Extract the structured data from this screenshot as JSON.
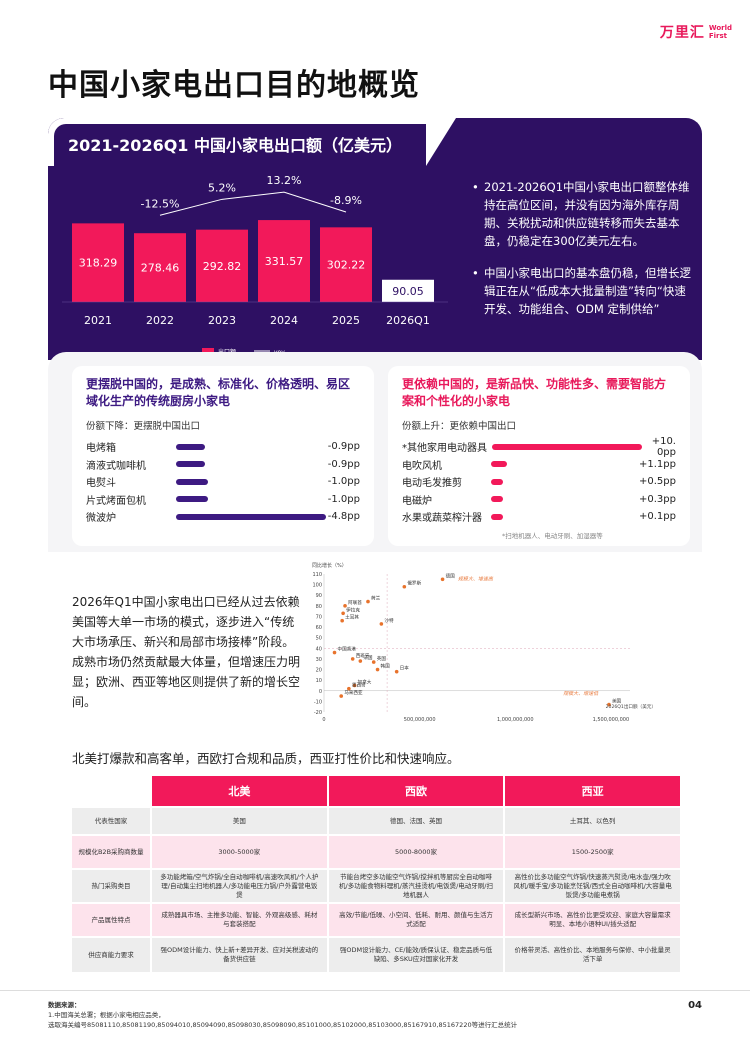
{
  "logo": {
    "cn": "万里汇",
    "en_line1": "World",
    "en_line2": "First"
  },
  "page_title": "中国小家电出口目的地概览",
  "chart_data": {
    "type": "bar",
    "title": "2021-2026Q1 中国小家电出口额（亿美元）",
    "categories": [
      "2021",
      "2022",
      "2023",
      "2024",
      "2025",
      "2026Q1"
    ],
    "series": [
      {
        "name": "出口额",
        "values": [
          318.29,
          278.46,
          292.82,
          331.57,
          302.22,
          90.05
        ]
      },
      {
        "name": "yoy",
        "values": [
          null,
          -12.5,
          5.2,
          13.2,
          -8.9,
          null
        ]
      }
    ],
    "value_labels": [
      "318.29",
      "278.46",
      "292.82",
      "331.57",
      "302.22",
      "90.05"
    ],
    "yoy_labels": [
      "",
      "-12.5%",
      "5.2%",
      "13.2%",
      "-8.9%",
      ""
    ],
    "legend": [
      "出口额",
      "yoy"
    ],
    "colors": {
      "bar": "#f2195a",
      "last_bar": "#ffffff",
      "line": "#ffffff"
    }
  },
  "bullets": [
    "2021-2026Q1中国小家电出口额整体维持在高位区间，并没有因为海外库存周期、关税扰动和供应链转移而失去基本盘，仍稳定在300亿美元左右。",
    "中国小家电出口的基本盘仍稳，但增长逻辑正在从“低成本大批量制造”转向“快速开发、功能组合、ODM 定制供给”"
  ],
  "left_card": {
    "heading": "更摆脱中国的，是成熟、标准化、价格透明、易区域化生产的传统厨房小家电",
    "sub": "份额下降：更摆脱中国出口",
    "rows": [
      {
        "label": "电烤箱",
        "value": "-0.9pp",
        "share": 0.19
      },
      {
        "label": "滴液式咖啡机",
        "value": "-0.9pp",
        "share": 0.19
      },
      {
        "label": "电熨斗",
        "value": "-1.0pp",
        "share": 0.21
      },
      {
        "label": "片式烤面包机",
        "value": "-1.0pp",
        "share": 0.21
      },
      {
        "label": "微波炉",
        "value": "-4.8pp",
        "share": 1.0
      }
    ]
  },
  "right_card": {
    "heading": "更依赖中国的，是新品快、功能性多、需要智能方案和个性化的小家电",
    "sub": "份额上升：更依赖中国出口",
    "rows": [
      {
        "label": "*其他家用电动器具",
        "value": "+10. 0pp",
        "share": 1.0
      },
      {
        "label": "电吹风机",
        "value": "+1.1pp",
        "share": 0.11
      },
      {
        "label": "电动毛发推剪",
        "value": "+0.5pp",
        "share": 0.05
      },
      {
        "label": "电磁炉",
        "value": "+0.3pp",
        "share": 0.03
      },
      {
        "label": "水果或蔬菜榨汁器",
        "value": "+0.1pp",
        "share": 0.01
      }
    ],
    "note": "*扫地机器人、电动牙刷、加湿器等"
  },
  "summary": "2026年Q1中国小家电出口已经从过去依赖美国等大单一市场的模式，逐步进入“传统大市场承压、新兴和局部市场接棒”阶段。成熟市场仍然贡献最大体量，但增速压力明显；欧洲、西亚等地区则提供了新的增长空间。",
  "scatter": {
    "type": "scatter",
    "ylabel": "同比增长（%）",
    "xlabel": "2026Q1出口额（美元）",
    "xlim": [
      0,
      1600000000
    ],
    "ylim": [
      -20,
      110
    ],
    "yticks": [
      "110",
      "100",
      "90",
      "80",
      "70",
      "60",
      "50",
      "40",
      "30",
      "20",
      "10",
      "0",
      "-10",
      "-20"
    ],
    "xticks": [
      "0",
      "500,000,000",
      "1,000,000,000",
      "1,500,000,000"
    ],
    "annotations": [
      "规模大、增速高",
      "规模大、增速低"
    ],
    "points": [
      {
        "name": "俄罗斯",
        "x": 420000000,
        "y": 98
      },
      {
        "name": "德国",
        "x": 620000000,
        "y": 105
      },
      {
        "name": "阿联酋",
        "x": 110000000,
        "y": 80
      },
      {
        "name": "荷兰",
        "x": 230000000,
        "y": 84
      },
      {
        "name": "伊拉克",
        "x": 100000000,
        "y": 73
      },
      {
        "name": "土耳其",
        "x": 95000000,
        "y": 66
      },
      {
        "name": "沙特",
        "x": 300000000,
        "y": 63
      },
      {
        "name": "中国香港",
        "x": 55000000,
        "y": 36
      },
      {
        "name": "法国",
        "x": 190000000,
        "y": 28
      },
      {
        "name": "英国",
        "x": 260000000,
        "y": 27
      },
      {
        "name": "日本",
        "x": 380000000,
        "y": 18
      },
      {
        "name": "韩国",
        "x": 280000000,
        "y": 20
      },
      {
        "name": "西班牙",
        "x": 150000000,
        "y": 30
      },
      {
        "name": "加拿大",
        "x": 160000000,
        "y": 5
      },
      {
        "name": "墨西哥",
        "x": 130000000,
        "y": 2
      },
      {
        "name": "马来西亚",
        "x": 90000000,
        "y": -5
      },
      {
        "name": "美国",
        "x": 1490000000,
        "y": -13
      }
    ]
  },
  "table_intro": "北美打爆款和高客单，西欧打合规和品质，西亚打性价比和快速响应。",
  "table": {
    "headers": [
      "北美",
      "西欧",
      "西亚"
    ],
    "rows": [
      {
        "label": "代表性国家",
        "style": "gray",
        "cells": [
          "美国",
          "德国、法国、英国",
          "土耳其、以色列"
        ]
      },
      {
        "label": "规模化B2B采购商数量",
        "style": "pink",
        "cells": [
          "3000-5000家",
          "5000-8000家",
          "1500-2500家"
        ]
      },
      {
        "label": "热门采购类目",
        "style": "gray",
        "cells": [
          "多功能烤箱/空气炸锅/全自动咖啡机/高速吹风机/个人护理/自动集尘扫地机器人/多功能电压力锅/户外露营电饭煲",
          "节能台烤空多功能空气炸锅/搅拌机等厨房全自动咖啡机/多功能食物料理机/蒸汽挂烫机/电饭煲/电动牙刷/扫地机器人",
          "高性价比多功能空气炸锅/快速蒸汽熨烫/电水壶/强力吹风机/暖手宝/多功能烹饪锅/西式全自动咖啡机/大容量电饭煲/多功能电煮锅"
        ]
      },
      {
        "label": "产品属性特点",
        "style": "pink",
        "cells": [
          "成熟器具市场、主推多功能、智能、外观高级感、耗材与套装搭配",
          "高效/节能/低噪、小空间、低耗、耐用、颜值与生活方式适配",
          "成长型新兴市场、高性价比更受欢迎、家庭大容量需求明显、本地小语种UI/插头适配"
        ]
      },
      {
        "label": "供应商能力要求",
        "style": "gray",
        "cells": [
          "强ODM设计能力、快上新+差异开发、应对关税波动的备货供应链",
          "强ODM设计能力、CE/能效/质保认证、稳定品质与低缺陷、多SKU应对国家化开发",
          "价格带灵活、高性价比、本地服务与保修、中小批量灵活下单"
        ]
      }
    ]
  },
  "source": {
    "title": "数据来源：",
    "line1": "1.中国海关总署；根据小家电相应品类，",
    "line2": "选取海关编号85081110,85081190,85094010,85094090,85098030,85098090,85101000,85102000,85103000,85167910,85167220等进行汇总统计"
  },
  "page_number": "04"
}
